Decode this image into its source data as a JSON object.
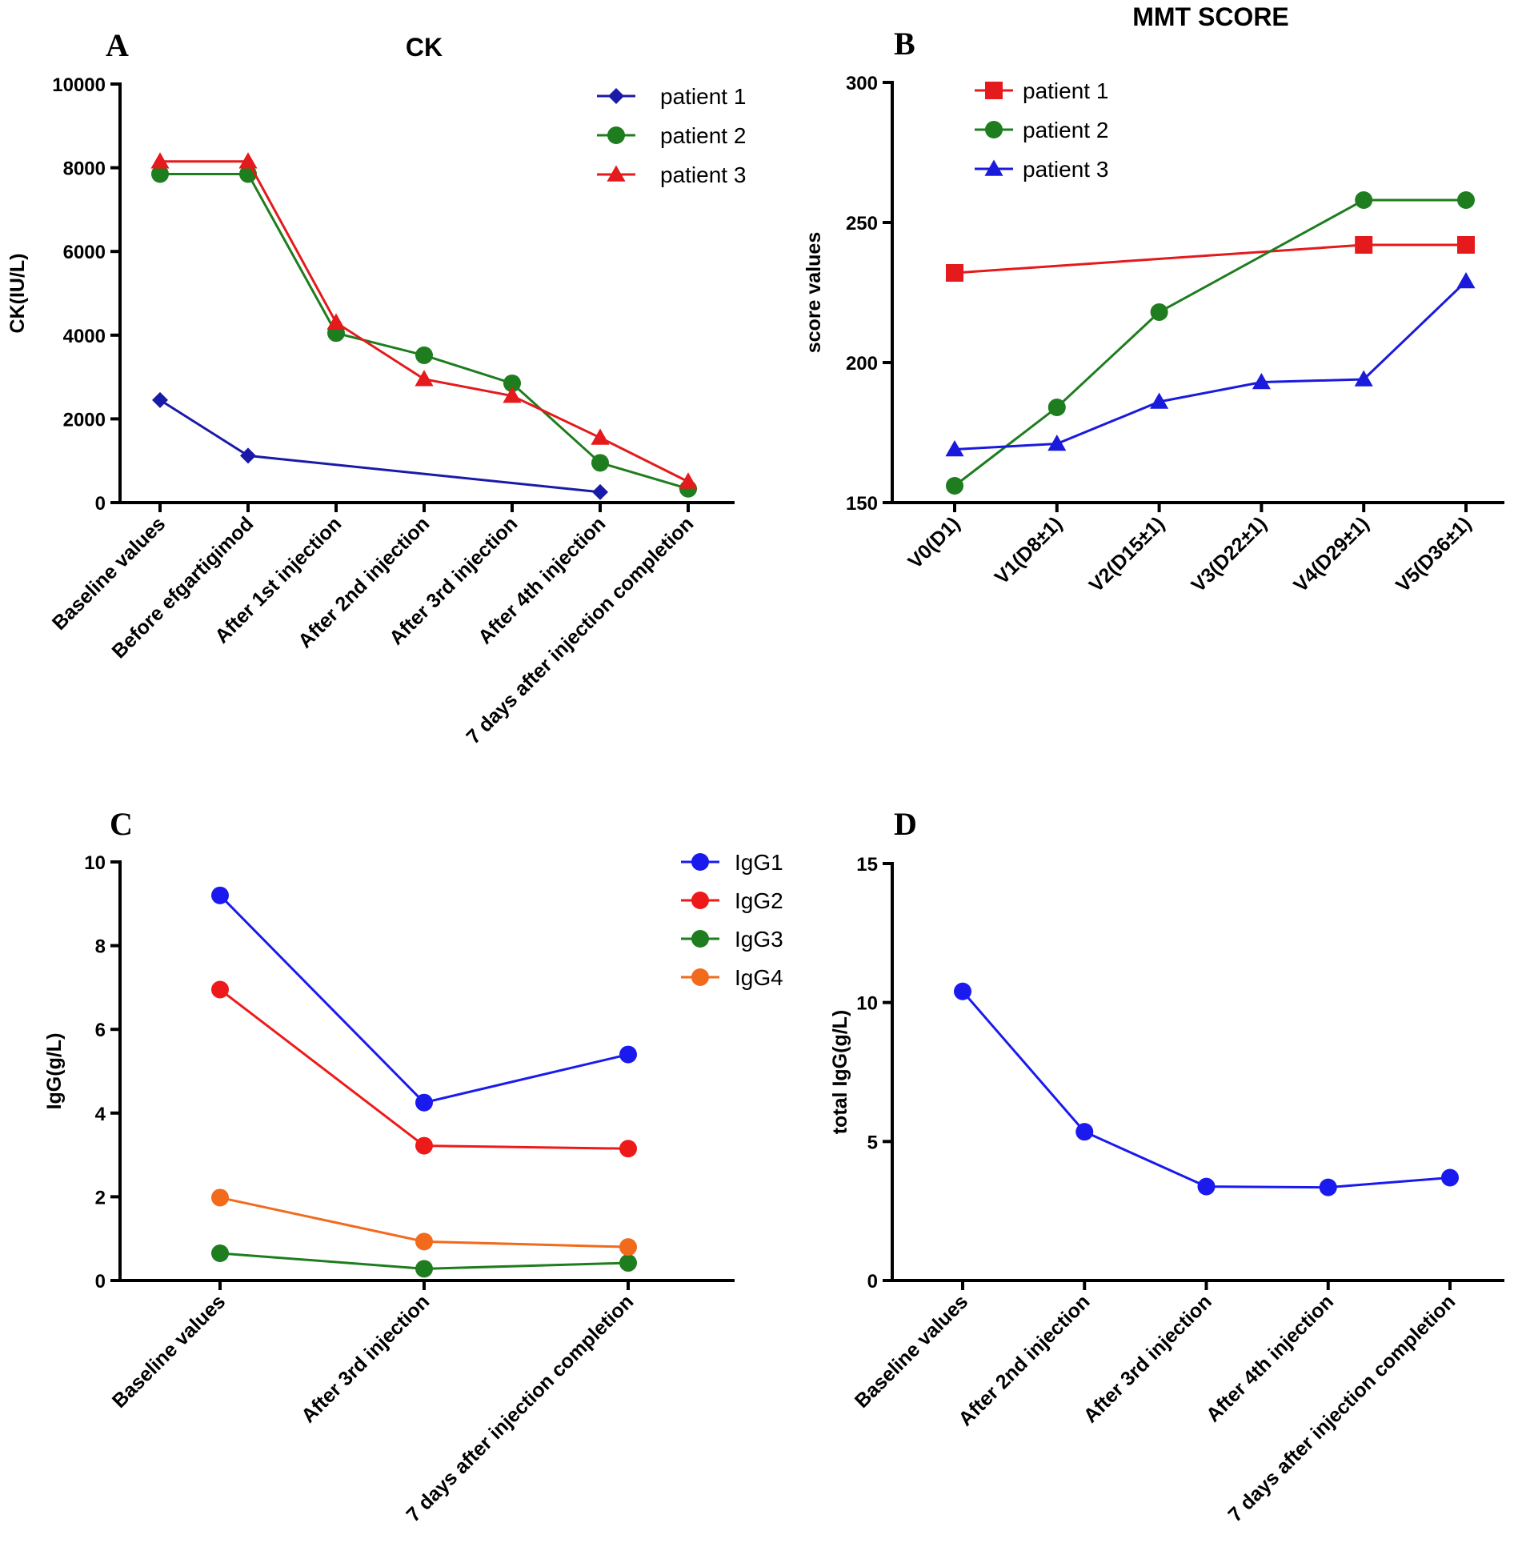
{
  "chart_data": [
    {
      "panel": "A",
      "type": "line",
      "title": "CK",
      "xlabel": "",
      "ylabel": "CK(IU/L)",
      "ylim": [
        0,
        10000
      ],
      "yticks": [
        0,
        2000,
        4000,
        6000,
        8000,
        10000
      ],
      "categories": [
        "Baseline values",
        "Before efgartigimod",
        "After 1st injection",
        "After 2nd injection",
        "After 3rd injection",
        "After 4th injection",
        "7 days after injection completion"
      ],
      "legend_position": "top-right",
      "series": [
        {
          "name": "patient 1",
          "color": "#1a1aa8",
          "marker": "diamond",
          "values": [
            2450,
            1120,
            null,
            null,
            null,
            250,
            null
          ]
        },
        {
          "name": "patient 2",
          "color": "#1e7d1e",
          "marker": "circle",
          "values": [
            7850,
            7850,
            4050,
            3520,
            2850,
            950,
            330
          ]
        },
        {
          "name": "patient 3",
          "color": "#e41a1c",
          "marker": "triangle",
          "values": [
            8150,
            8150,
            4300,
            2950,
            2550,
            1550,
            500
          ]
        }
      ]
    },
    {
      "panel": "B",
      "type": "line",
      "title": "MMT SCORE",
      "xlabel": "",
      "ylabel": "score values",
      "ylim": [
        150,
        300
      ],
      "yticks": [
        150,
        200,
        250,
        300
      ],
      "categories": [
        "V0(D1)",
        "V1(D8±1)",
        "V2(D15±1)",
        "V3(D22±1)",
        "V4(D29±1)",
        "V5(D36±1)"
      ],
      "legend_position": "top-left",
      "series": [
        {
          "name": "patient 1",
          "color": "#e41a1c",
          "marker": "square",
          "values": [
            232,
            null,
            null,
            null,
            242,
            242
          ]
        },
        {
          "name": "patient 2",
          "color": "#1e7d1e",
          "marker": "circle",
          "values": [
            156,
            184,
            218,
            null,
            258,
            258
          ]
        },
        {
          "name": "patient 3",
          "color": "#1a1adc",
          "marker": "triangle",
          "values": [
            169,
            171,
            186,
            193,
            194,
            229
          ]
        }
      ]
    },
    {
      "panel": "C",
      "type": "line",
      "title": "",
      "xlabel": "",
      "ylabel": "IgG(g/L)",
      "ylim": [
        0,
        10
      ],
      "yticks": [
        0,
        2,
        4,
        6,
        8,
        10
      ],
      "categories": [
        "Baseline values",
        "After 3rd injection",
        "7 days after injection completion"
      ],
      "legend_position": "top-right",
      "series": [
        {
          "name": "IgG1",
          "color": "#1a1aee",
          "marker": "circle",
          "values": [
            9.2,
            4.25,
            5.4
          ]
        },
        {
          "name": "IgG2",
          "color": "#ee1a1a",
          "marker": "circle",
          "values": [
            6.95,
            3.22,
            3.15
          ]
        },
        {
          "name": "IgG3",
          "color": "#1e7d1e",
          "marker": "circle",
          "values": [
            0.65,
            0.28,
            0.42
          ]
        },
        {
          "name": "IgG4",
          "color": "#f26a1b",
          "marker": "circle",
          "values": [
            1.98,
            0.93,
            0.8
          ]
        }
      ]
    },
    {
      "panel": "D",
      "type": "line",
      "title": "",
      "xlabel": "",
      "ylabel": "total IgG(g/L)",
      "ylim": [
        0,
        15
      ],
      "yticks": [
        0,
        5,
        10,
        15
      ],
      "categories": [
        "Baseline values",
        "After 2nd injection",
        "After 3rd injection",
        "After 4th injection",
        "7 days after injection completion"
      ],
      "legend_position": "none",
      "series": [
        {
          "name": "total IgG",
          "color": "#1a1aee",
          "marker": "circle",
          "values": [
            10.4,
            5.35,
            3.38,
            3.35,
            3.7
          ]
        }
      ]
    }
  ]
}
